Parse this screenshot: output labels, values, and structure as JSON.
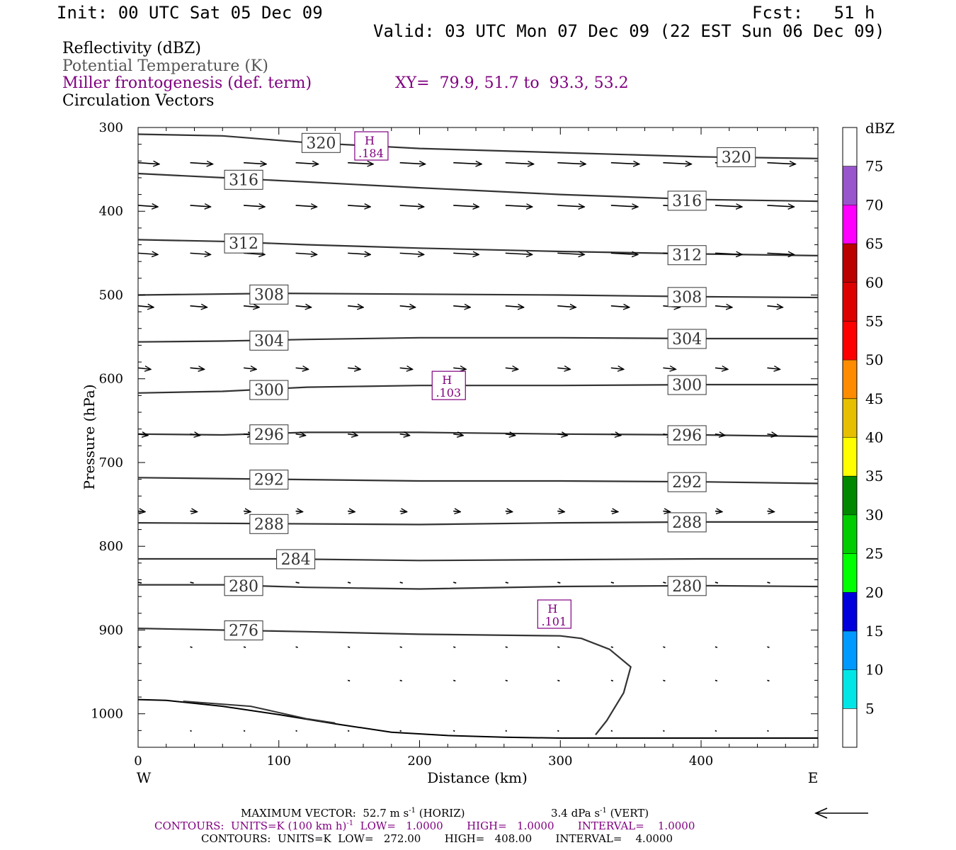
{
  "header": {
    "init": "Init: 00 UTC Sat 05 Dec 09",
    "fcst": "Fcst:   51 h",
    "valid": "Valid: 03 UTC Mon 07 Dec 09 (22 EST Sun 06 Dec 09)"
  },
  "legend": {
    "reflectivity": "Reflectivity (dBZ)",
    "theta": "Potential Temperature (K)",
    "miller": "Miller frontogenesis (def. term)",
    "xy": "XY=  79.9, 51.7 to  93.3, 53.2",
    "vectors": "Circulation Vectors"
  },
  "colors": {
    "theta_line": "#333333",
    "miller": "#800080",
    "legend_gray": "#555555",
    "frame": "#000000"
  },
  "footer": {
    "max_vector_a": "MAXIMUM VECTOR:  52.7 m s",
    "max_vector_sup": "-1",
    "max_vector_b": " (HORIZ)",
    "max_vert_a": "3.4 dPa s",
    "max_vert_sup": "-1",
    "max_vert_b": " (VERT)",
    "contours1_a": "CONTOURS:  UNITS=K (100 km h)",
    "contours1_sup": "-1",
    "contours1_b": "  LOW=   1.0000       HIGH=   1.0000       INTERVAL=    1.0000",
    "contours2": "CONTOURS:  UNITS=K  LOW=   272.00       HIGH=   408.00       INTERVAL=    4.0000"
  },
  "chart_data": {
    "type": "line",
    "subtype": "vertical cross-section",
    "xlabel": "Distance (km)",
    "ylabel": "Pressure (hPa)",
    "xlim": [
      0,
      483
    ],
    "ylim": [
      1040,
      300
    ],
    "x_ticks": [
      "0",
      "100",
      "200",
      "300",
      "400"
    ],
    "x_tick_values": [
      0,
      100,
      200,
      300,
      400
    ],
    "y_ticks": [
      "300",
      "400",
      "500",
      "600",
      "700",
      "800",
      "900",
      "1000"
    ],
    "y_tick_values": [
      300,
      400,
      500,
      600,
      700,
      800,
      900,
      1000
    ],
    "west_label": "W",
    "east_label": "E",
    "colorbar": {
      "unit": "dBZ",
      "labels": [
        "5",
        "10",
        "15",
        "20",
        "25",
        "30",
        "35",
        "40",
        "45",
        "50",
        "55",
        "60",
        "65",
        "70",
        "75"
      ],
      "colors": [
        "#ffffff",
        "#00e6e6",
        "#0099ff",
        "#0000dd",
        "#00ff00",
        "#00cc00",
        "#008800",
        "#ffff00",
        "#e6c000",
        "#ff8c00",
        "#ff0000",
        "#dd0000",
        "#bb0000",
        "#ff00ff",
        "#9955cc",
        "#ffffff"
      ]
    },
    "isentropes": [
      {
        "label": "320",
        "x": [
          0,
          60,
          120,
          200,
          300,
          400,
          483
        ],
        "p": [
          308,
          310,
          318,
          325,
          330,
          335,
          337
        ],
        "label_pos": [
          [
            130,
            318
          ],
          [
            425,
            335
          ]
        ]
      },
      {
        "label": "316",
        "x": [
          0,
          60,
          120,
          200,
          300,
          400,
          483
        ],
        "p": [
          355,
          360,
          365,
          372,
          380,
          386,
          388
        ],
        "label_pos": [
          [
            75,
            362
          ],
          [
            390,
            387
          ]
        ]
      },
      {
        "label": "312",
        "x": [
          0,
          60,
          120,
          200,
          300,
          400,
          483
        ],
        "p": [
          434,
          436,
          440,
          444,
          448,
          451,
          453
        ],
        "label_pos": [
          [
            75,
            438
          ],
          [
            390,
            452
          ]
        ]
      },
      {
        "label": "308",
        "x": [
          0,
          100,
          200,
          300,
          400,
          483
        ],
        "p": [
          500,
          498,
          499,
          500,
          502,
          503
        ],
        "label_pos": [
          [
            93,
            499
          ],
          [
            390,
            502
          ]
        ]
      },
      {
        "label": "304",
        "x": [
          0,
          60,
          120,
          200,
          300,
          400,
          483
        ],
        "p": [
          556,
          555,
          553,
          551,
          551,
          552,
          552
        ],
        "label_pos": [
          [
            93,
            554
          ],
          [
            390,
            552
          ]
        ]
      },
      {
        "label": "300",
        "x": [
          0,
          60,
          120,
          200,
          300,
          400,
          483
        ],
        "p": [
          617,
          615,
          610,
          608,
          608,
          607,
          607
        ],
        "label_pos": [
          [
            93,
            613
          ],
          [
            390,
            607
          ]
        ]
      },
      {
        "label": "296",
        "x": [
          0,
          60,
          120,
          200,
          300,
          400,
          483
        ],
        "p": [
          666,
          667,
          664,
          664,
          666,
          667,
          669
        ],
        "label_pos": [
          [
            93,
            666
          ],
          [
            390,
            667
          ]
        ]
      },
      {
        "label": "292",
        "x": [
          0,
          100,
          200,
          300,
          400,
          483
        ],
        "p": [
          718,
          720,
          722,
          722,
          723,
          725
        ],
        "label_pos": [
          [
            93,
            720
          ],
          [
            390,
            723
          ]
        ]
      },
      {
        "label": "288",
        "x": [
          0,
          100,
          200,
          300,
          400,
          483
        ],
        "p": [
          772,
          773,
          774,
          772,
          771,
          771
        ],
        "label_pos": [
          [
            93,
            773
          ],
          [
            390,
            771
          ]
        ]
      },
      {
        "label": "284",
        "x": [
          0,
          100,
          200,
          300,
          400,
          483
        ],
        "p": [
          815,
          815,
          817,
          816,
          815,
          815
        ],
        "label_pos": [
          [
            112,
            815
          ]
        ]
      },
      {
        "label": "280",
        "x": [
          0,
          60,
          120,
          200,
          300,
          400,
          483
        ],
        "p": [
          846,
          846,
          849,
          851,
          848,
          847,
          848
        ],
        "label_pos": [
          [
            75,
            847
          ],
          [
            390,
            847
          ]
        ]
      },
      {
        "label": "276",
        "x": [
          0,
          60,
          120,
          200,
          300,
          315,
          335,
          350,
          345,
          333,
          325
        ],
        "p": [
          898,
          900,
          902,
          905,
          907,
          910,
          923,
          944,
          975,
          1008,
          1025
        ],
        "label_pos": [
          [
            75,
            900
          ]
        ]
      }
    ],
    "surface": {
      "x": [
        0,
        20,
        60,
        100,
        140,
        180,
        220,
        260,
        300,
        400,
        483
      ],
      "p": [
        983,
        984,
        991,
        1001,
        1012,
        1022,
        1026,
        1028,
        1029,
        1029,
        1029
      ]
    },
    "terrain_segment": {
      "x": [
        32,
        80,
        120,
        140
      ],
      "p": [
        985,
        991,
        1006,
        1011
      ]
    },
    "miller_highs": [
      {
        "label": "H",
        "value": ".184",
        "x": 166,
        "p": 322
      },
      {
        "label": "H",
        "value": ".103",
        "x": 221,
        "p": 608
      },
      {
        "label": "H",
        "value": ".101",
        "x": 296,
        "p": 881
      }
    ],
    "vectors": [
      {
        "p": 342,
        "x": [
          0,
          37,
          75,
          112,
          149,
          186,
          224,
          261,
          298,
          336,
          373,
          410,
          447
        ],
        "len": [
          30,
          32,
          32,
          32,
          36,
          36,
          40,
          40,
          40,
          40,
          40,
          40,
          40
        ]
      },
      {
        "p": 393,
        "x": [
          0,
          37,
          75,
          112,
          149,
          186,
          224,
          261,
          298,
          336,
          373,
          410,
          447
        ],
        "len": [
          28,
          29,
          30,
          30,
          32,
          34,
          36,
          38,
          38,
          38,
          38,
          38,
          38
        ]
      },
      {
        "p": 450,
        "x": [
          0,
          37,
          75,
          112,
          149,
          186,
          224,
          261,
          298,
          336,
          373,
          410,
          447
        ],
        "len": [
          28,
          29,
          30,
          30,
          32,
          34,
          36,
          38,
          38,
          38,
          38,
          38,
          38
        ]
      },
      {
        "p": 513,
        "x": [
          0,
          37,
          75,
          112,
          149,
          186,
          224,
          261,
          298,
          336,
          373,
          410,
          447
        ],
        "len": [
          22,
          24,
          22,
          22,
          22,
          22,
          24,
          26,
          26,
          26,
          24,
          24,
          22
        ]
      },
      {
        "p": 587,
        "x": [
          0,
          37,
          75,
          112,
          149,
          186,
          224,
          261,
          298,
          336,
          373,
          410,
          447
        ],
        "len": [
          18,
          20,
          18,
          18,
          18,
          18,
          18,
          18,
          18,
          18,
          18,
          18,
          18
        ]
      },
      {
        "p": 666,
        "x": [
          0,
          37,
          75,
          112,
          149,
          186,
          224,
          261,
          298,
          336,
          373,
          410,
          447
        ],
        "len": [
          14,
          14,
          14,
          14,
          14,
          14,
          14,
          14,
          14,
          14,
          14,
          14,
          14
        ]
      },
      {
        "p": 758,
        "x": [
          0,
          37,
          75,
          112,
          149,
          186,
          224,
          261,
          298,
          336,
          373,
          410,
          447
        ],
        "len": [
          10,
          10,
          10,
          10,
          10,
          10,
          10,
          10,
          10,
          10,
          10,
          10,
          10
        ]
      },
      {
        "p": 843,
        "x": [
          0,
          37,
          75,
          112,
          149,
          186,
          224,
          261,
          298,
          336,
          373,
          410,
          447
        ],
        "len": [
          5,
          5,
          5,
          5,
          4,
          4,
          4,
          4,
          4,
          4,
          4,
          4,
          4
        ]
      },
      {
        "p": 920,
        "x": [
          0,
          37,
          75,
          112,
          149,
          186,
          224,
          261,
          298,
          336,
          373,
          410,
          447
        ],
        "len": [
          3,
          3,
          3,
          3,
          3,
          3,
          3,
          3,
          3,
          3,
          3,
          3,
          3
        ]
      },
      {
        "p": 960,
        "x": [
          149,
          186,
          224,
          261,
          298,
          336,
          373,
          410,
          447
        ],
        "len": [
          3,
          3,
          3,
          3,
          3,
          3,
          3,
          3,
          3
        ]
      },
      {
        "p": 1020,
        "x": [
          37,
          75,
          112,
          149,
          186,
          224,
          261,
          298,
          336,
          373,
          410,
          447
        ],
        "len": [
          2,
          2,
          2,
          2,
          2,
          2,
          2,
          2,
          2,
          2,
          2,
          2
        ]
      }
    ]
  }
}
